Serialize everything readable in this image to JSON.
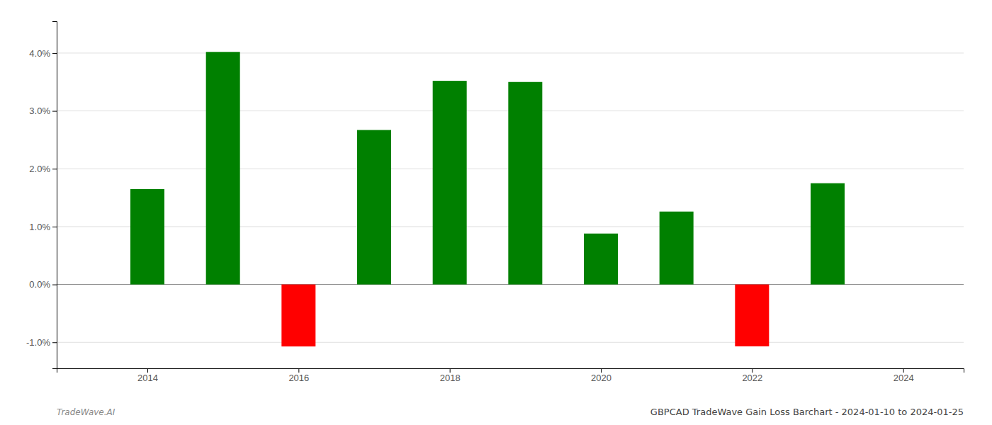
{
  "chart_data": {
    "type": "bar",
    "title": "GBPCAD TradeWave Gain Loss Barchart - 2024-01-10 to 2024-01-25",
    "annotations": [
      "TradeWave.AI"
    ],
    "x": [
      2014,
      2015,
      2016,
      2017,
      2018,
      2019,
      2020,
      2021,
      2022,
      2023
    ],
    "values": [
      0.01648,
      0.0402,
      -0.01072,
      0.0267,
      0.0352,
      0.035,
      0.0088,
      0.0126,
      -0.0107,
      0.0175
    ],
    "colors": [
      "#008000",
      "#008000",
      "#ff0000",
      "#008000",
      "#008000",
      "#008000",
      "#008000",
      "#008000",
      "#ff0000",
      "#008000"
    ],
    "xlim": [
      2012.8,
      2024.8
    ],
    "xticks": [
      2014,
      2016,
      2018,
      2020,
      2022,
      2024
    ],
    "ylim": [
      -0.0145,
      0.0455
    ],
    "yticks": [
      {
        "value": -0.01,
        "label": "-1.0%"
      },
      {
        "value": 0.0,
        "label": "0.0%"
      },
      {
        "value": 0.01,
        "label": "1.0%"
      },
      {
        "value": 0.02,
        "label": "2.0%"
      },
      {
        "value": 0.03,
        "label": "3.0%"
      },
      {
        "value": 0.04,
        "label": "4.0%"
      }
    ],
    "grid": true
  }
}
